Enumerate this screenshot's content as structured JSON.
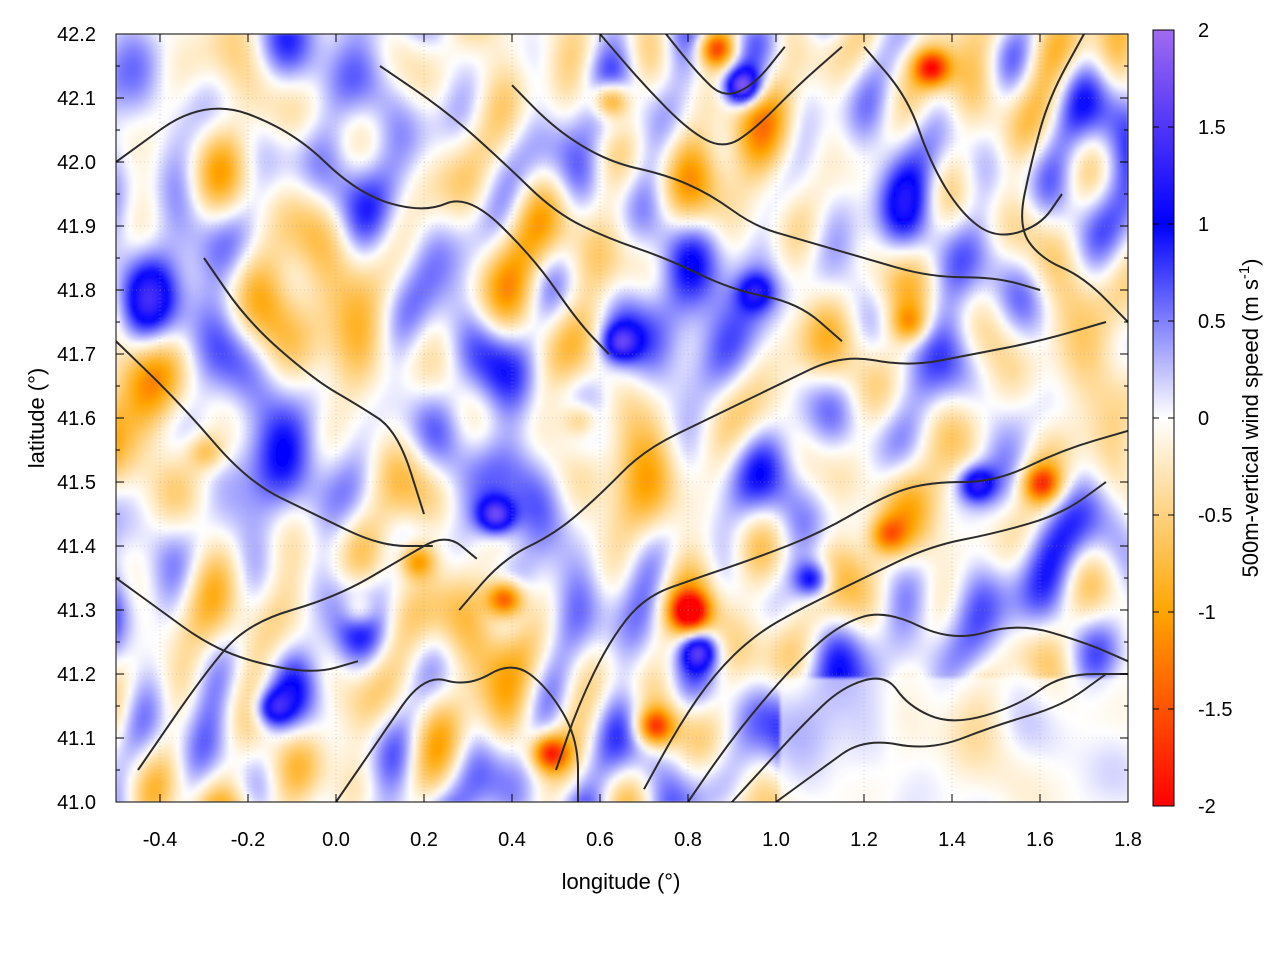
{
  "chart_data": {
    "type": "heatmap",
    "xlabel": "longitude (°)",
    "ylabel": "latitude (°)",
    "colorbar_label": "500m-vertical wind speed (m s-1)",
    "colorbar_label_parts": {
      "main": "500m-vertical wind speed (m s",
      "sup": "-1",
      "close": ")"
    },
    "xlim": [
      -0.5,
      1.8
    ],
    "ylim": [
      41.0,
      42.2
    ],
    "zlim": [
      -2,
      2
    ],
    "x_ticks": [
      -0.4,
      -0.2,
      0.0,
      0.2,
      0.4,
      0.6,
      0.8,
      1.0,
      1.2,
      1.4,
      1.6,
      1.8
    ],
    "x_tick_labels": [
      "-0.4",
      "-0.2",
      "0.0",
      "0.2",
      "0.4",
      "0.6",
      "0.8",
      "1.0",
      "1.2",
      "1.4",
      "1.6",
      "1.8"
    ],
    "y_ticks": [
      41.0,
      41.1,
      41.2,
      41.3,
      41.4,
      41.5,
      41.6,
      41.7,
      41.8,
      41.9,
      42.0,
      42.1,
      42.2
    ],
    "y_tick_labels": [
      "41.0",
      "41.1",
      "41.2",
      "41.3",
      "41.4",
      "41.5",
      "41.6",
      "41.7",
      "41.8",
      "41.9",
      "42.0",
      "42.1",
      "42.2"
    ],
    "colorbar_ticks": [
      2,
      1.5,
      1,
      0.5,
      0,
      -0.5,
      -1,
      -1.5,
      -2
    ],
    "colorbar_tick_labels": [
      "2",
      "1.5",
      "1",
      "0.5",
      "0",
      "-0.5",
      "-1",
      "-1.5",
      "-2"
    ],
    "colormap": [
      {
        "value": -2.0,
        "color": "#ff0000"
      },
      {
        "value": -1.0,
        "color": "#ffa500"
      },
      {
        "value": 0.0,
        "color": "#ffffff"
      },
      {
        "value": 1.0,
        "color": "#0000ff"
      },
      {
        "value": 2.0,
        "color": "#a06bf0"
      }
    ],
    "grid": true,
    "overlay": "terrain contour lines (black)",
    "contours": [
      [
        [
          -0.45,
          41.05
        ],
        [
          -0.3,
          41.2
        ],
        [
          -0.2,
          41.28
        ],
        [
          0.0,
          41.32
        ],
        [
          0.15,
          41.38
        ],
        [
          0.25,
          41.42
        ],
        [
          0.32,
          41.38
        ]
      ],
      [
        [
          -0.5,
          41.72
        ],
        [
          -0.35,
          41.62
        ],
        [
          -0.2,
          41.5
        ],
        [
          -0.05,
          41.45
        ],
        [
          0.1,
          41.4
        ],
        [
          0.22,
          41.4
        ]
      ],
      [
        [
          -0.3,
          41.85
        ],
        [
          -0.2,
          41.75
        ],
        [
          -0.05,
          41.66
        ],
        [
          0.05,
          41.62
        ],
        [
          0.14,
          41.58
        ],
        [
          0.2,
          41.45
        ]
      ],
      [
        [
          -0.5,
          42.0
        ],
        [
          -0.3,
          42.1
        ],
        [
          -0.1,
          42.05
        ],
        [
          0.05,
          41.95
        ],
        [
          0.2,
          41.92
        ],
        [
          0.3,
          41.95
        ],
        [
          0.45,
          41.85
        ],
        [
          0.55,
          41.75
        ],
        [
          0.62,
          41.7
        ]
      ],
      [
        [
          0.1,
          42.15
        ],
        [
          0.25,
          42.08
        ],
        [
          0.38,
          42.0
        ],
        [
          0.5,
          41.92
        ],
        [
          0.62,
          41.88
        ],
        [
          0.75,
          41.85
        ],
        [
          0.9,
          41.8
        ],
        [
          1.05,
          41.78
        ],
        [
          1.15,
          41.72
        ]
      ],
      [
        [
          0.4,
          42.12
        ],
        [
          0.5,
          42.05
        ],
        [
          0.62,
          42.0
        ],
        [
          0.75,
          41.98
        ],
        [
          0.85,
          41.95
        ],
        [
          0.95,
          41.9
        ],
        [
          1.05,
          41.88
        ],
        [
          1.2,
          41.85
        ],
        [
          1.35,
          41.82
        ],
        [
          1.5,
          41.82
        ],
        [
          1.6,
          41.8
        ]
      ],
      [
        [
          0.6,
          42.2
        ],
        [
          0.7,
          42.12
        ],
        [
          0.8,
          42.05
        ],
        [
          0.88,
          42.02
        ],
        [
          0.95,
          42.05
        ],
        [
          1.05,
          42.12
        ],
        [
          1.15,
          42.18
        ]
      ],
      [
        [
          0.75,
          42.2
        ],
        [
          0.82,
          42.14
        ],
        [
          0.88,
          42.1
        ],
        [
          0.95,
          42.12
        ],
        [
          1.02,
          42.18
        ]
      ],
      [
        [
          0.28,
          41.3
        ],
        [
          0.38,
          41.38
        ],
        [
          0.5,
          41.42
        ],
        [
          0.6,
          41.48
        ],
        [
          0.7,
          41.55
        ],
        [
          0.85,
          41.6
        ],
        [
          1.0,
          41.65
        ],
        [
          1.15,
          41.7
        ],
        [
          1.3,
          41.68
        ],
        [
          1.45,
          41.7
        ],
        [
          1.6,
          41.72
        ],
        [
          1.75,
          41.75
        ]
      ],
      [
        [
          0.5,
          41.05
        ],
        [
          0.55,
          41.15
        ],
        [
          0.62,
          41.25
        ],
        [
          0.7,
          41.32
        ],
        [
          0.82,
          41.35
        ],
        [
          0.95,
          41.38
        ],
        [
          1.1,
          41.42
        ],
        [
          1.25,
          41.48
        ],
        [
          1.35,
          41.5
        ],
        [
          1.5,
          41.5
        ],
        [
          1.65,
          41.55
        ],
        [
          1.8,
          41.58
        ]
      ],
      [
        [
          0.7,
          41.02
        ],
        [
          0.78,
          41.12
        ],
        [
          0.86,
          41.2
        ],
        [
          0.95,
          41.26
        ],
        [
          1.05,
          41.3
        ],
        [
          1.2,
          41.35
        ],
        [
          1.35,
          41.4
        ],
        [
          1.5,
          41.42
        ],
        [
          1.65,
          41.45
        ],
        [
          1.75,
          41.5
        ]
      ],
      [
        [
          0.8,
          41.0
        ],
        [
          0.88,
          41.08
        ],
        [
          0.96,
          41.15
        ],
        [
          1.05,
          41.22
        ],
        [
          1.15,
          41.28
        ],
        [
          1.25,
          41.3
        ],
        [
          1.4,
          41.25
        ],
        [
          1.55,
          41.28
        ],
        [
          1.7,
          41.25
        ],
        [
          1.8,
          41.22
        ]
      ],
      [
        [
          0.9,
          41.0
        ],
        [
          0.98,
          41.06
        ],
        [
          1.06,
          41.12
        ],
        [
          1.15,
          41.18
        ],
        [
          1.25,
          41.2
        ],
        [
          1.3,
          41.15
        ],
        [
          1.4,
          41.12
        ],
        [
          1.55,
          41.15
        ],
        [
          1.65,
          41.2
        ],
        [
          1.8,
          41.2
        ]
      ],
      [
        [
          1.0,
          41.0
        ],
        [
          1.1,
          41.05
        ],
        [
          1.2,
          41.1
        ],
        [
          1.35,
          41.08
        ],
        [
          1.5,
          41.12
        ],
        [
          1.65,
          41.15
        ],
        [
          1.75,
          41.2
        ]
      ],
      [
        [
          0.0,
          41.0
        ],
        [
          0.1,
          41.1
        ],
        [
          0.2,
          41.2
        ],
        [
          0.3,
          41.18
        ],
        [
          0.4,
          41.22
        ],
        [
          0.48,
          41.18
        ],
        [
          0.55,
          41.1
        ],
        [
          0.55,
          41.0
        ]
      ],
      [
        [
          -0.5,
          41.35
        ],
        [
          -0.4,
          41.3
        ],
        [
          -0.3,
          41.25
        ],
        [
          -0.2,
          41.22
        ],
        [
          -0.05,
          41.2
        ],
        [
          0.05,
          41.22
        ]
      ],
      [
        [
          1.7,
          42.2
        ],
        [
          1.62,
          42.1
        ],
        [
          1.58,
          42.0
        ],
        [
          1.55,
          41.9
        ],
        [
          1.6,
          41.85
        ],
        [
          1.7,
          41.82
        ],
        [
          1.8,
          41.75
        ]
      ],
      [
        [
          1.2,
          42.18
        ],
        [
          1.3,
          42.1
        ],
        [
          1.35,
          42.0
        ],
        [
          1.42,
          41.92
        ],
        [
          1.5,
          41.88
        ],
        [
          1.6,
          41.9
        ],
        [
          1.65,
          41.95
        ]
      ]
    ]
  }
}
